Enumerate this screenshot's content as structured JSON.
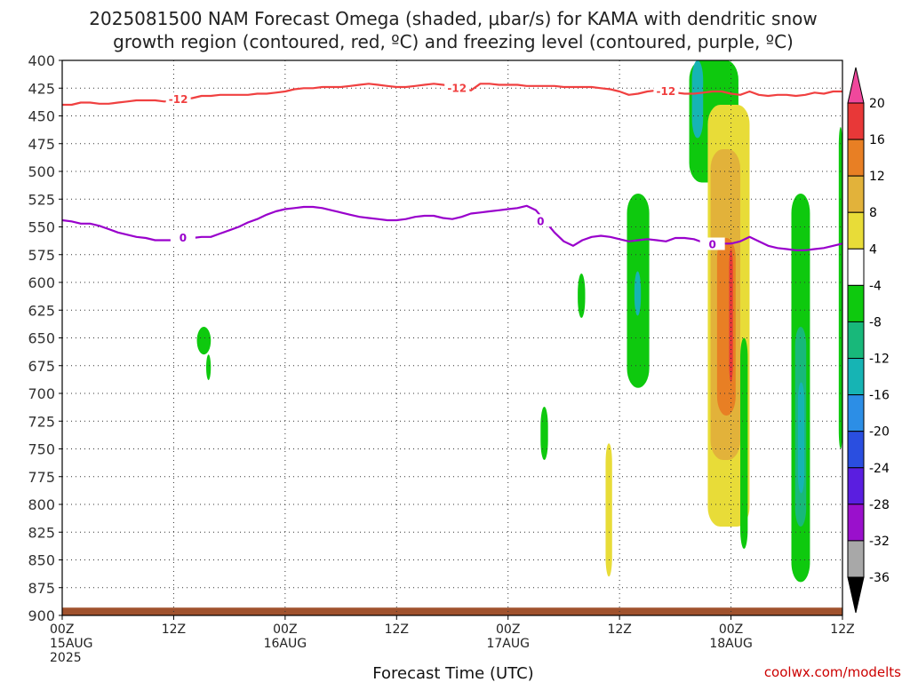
{
  "chart_data": {
    "type": "heatmap",
    "title_lines": [
      "2025081500 NAM Forecast Omega (shaded, μbar/s) for KAMA with dendritic snow",
      "growth region (contoured, red, ºC) and freezing level (contoured, purple, ºC)"
    ],
    "xlabel": "Forecast Time (UTC)",
    "credit": "coolwx.com/modelts",
    "x_unit": "forecast hour",
    "xlim": [
      0,
      84
    ],
    "ylim": [
      400,
      900
    ],
    "y_inverted": true,
    "y_ticks": [
      400,
      425,
      450,
      475,
      500,
      525,
      550,
      575,
      600,
      625,
      650,
      675,
      700,
      725,
      750,
      775,
      800,
      825,
      850,
      875,
      900
    ],
    "x_ticks": [
      {
        "hour": 0,
        "lines": [
          "00Z",
          "15AUG",
          "2025"
        ]
      },
      {
        "hour": 12,
        "lines": [
          "12Z"
        ]
      },
      {
        "hour": 24,
        "lines": [
          "00Z",
          "16AUG"
        ]
      },
      {
        "hour": 36,
        "lines": [
          "12Z"
        ]
      },
      {
        "hour": 48,
        "lines": [
          "00Z",
          "17AUG"
        ]
      },
      {
        "hour": 60,
        "lines": [
          "12Z"
        ]
      },
      {
        "hour": 72,
        "lines": [
          "00Z",
          "18AUG"
        ]
      },
      {
        "hour": 84,
        "lines": [
          "12Z"
        ]
      }
    ],
    "grid": true,
    "colorbar": {
      "labels": [
        "20",
        "16",
        "12",
        "8",
        "4",
        "-4",
        "-8",
        "-12",
        "-16",
        "-20",
        "-24",
        "-28",
        "-32",
        "-36"
      ],
      "colors_top_to_bottom": [
        "#f0489c",
        "#e83838",
        "#e87f24",
        "#e2b23a",
        "#e8dc38",
        "#ffffff",
        "#0ec90e",
        "#18b87a",
        "#16b4b4",
        "#2c8ee6",
        "#2a4ee0",
        "#5a1ee0",
        "#9a10cc",
        "#a8a8a8",
        "#000000"
      ]
    },
    "series": [
      {
        "name": "-12",
        "color": "#f04040",
        "x": [
          0,
          1,
          2,
          3,
          4,
          5,
          6,
          7,
          8,
          9,
          10,
          11,
          12,
          13,
          14,
          15,
          16,
          17,
          18,
          19,
          20,
          21,
          22,
          23,
          24,
          25,
          26,
          27,
          28,
          29,
          30,
          31,
          32,
          33,
          34,
          35,
          36,
          37,
          38,
          39,
          40,
          41,
          42,
          43,
          44,
          45,
          46,
          47,
          48,
          49,
          50,
          51,
          52,
          53,
          54,
          55,
          56,
          57,
          58,
          59,
          60,
          61,
          62,
          63,
          64,
          65,
          66,
          67,
          68,
          69,
          70,
          71,
          72,
          73,
          74,
          75,
          76,
          77,
          78,
          79,
          80,
          81,
          82,
          83,
          84
        ],
        "y": [
          440,
          440,
          438,
          438,
          439,
          439,
          438,
          437,
          436,
          436,
          436,
          437,
          436,
          435,
          434,
          432,
          432,
          431,
          431,
          431,
          431,
          430,
          430,
          429,
          428,
          426,
          425,
          425,
          424,
          424,
          424,
          423,
          422,
          421,
          422,
          423,
          424,
          424,
          423,
          422,
          421,
          422,
          423,
          425,
          427,
          421,
          421,
          422,
          422,
          422,
          423,
          423,
          423,
          423,
          424,
          424,
          424,
          424,
          425,
          426,
          428,
          431,
          430,
          428,
          427,
          428,
          429,
          430,
          430,
          429,
          428,
          428,
          430,
          431,
          428,
          431,
          432,
          431,
          431,
          432,
          431,
          429,
          430,
          428,
          428
        ]
      },
      {
        "name": "0",
        "color": "#9900cc",
        "x": [
          0,
          1,
          2,
          3,
          4,
          5,
          6,
          7,
          8,
          9,
          10,
          11,
          12,
          13,
          14,
          15,
          16,
          17,
          18,
          19,
          20,
          21,
          22,
          23,
          24,
          25,
          26,
          27,
          28,
          29,
          30,
          31,
          32,
          33,
          34,
          35,
          36,
          37,
          38,
          39,
          40,
          41,
          42,
          43,
          44,
          45,
          46,
          47,
          48,
          49,
          50,
          51,
          52,
          53,
          54,
          55,
          56,
          57,
          58,
          59,
          60,
          61,
          62,
          63,
          64,
          65,
          66,
          67,
          68,
          69,
          70,
          71,
          72,
          73,
          74,
          75,
          76,
          77,
          78,
          79,
          80,
          81,
          82,
          83,
          84
        ],
        "y": [
          544,
          545,
          547,
          547,
          549,
          552,
          555,
          557,
          559,
          560,
          562,
          562,
          562,
          560,
          560,
          559,
          559,
          556,
          553,
          550,
          546,
          543,
          539,
          536,
          534,
          533,
          532,
          532,
          533,
          535,
          537,
          539,
          541,
          542,
          543,
          544,
          544,
          543,
          541,
          540,
          540,
          542,
          543,
          541,
          538,
          537,
          536,
          535,
          534,
          533,
          531,
          535,
          545,
          555,
          563,
          567,
          562,
          559,
          558,
          559,
          561,
          563,
          562,
          561,
          562,
          563,
          560,
          560,
          561,
          564,
          566,
          565,
          565,
          563,
          559,
          563,
          567,
          569,
          570,
          571,
          571,
          570,
          569,
          567,
          565
        ]
      }
    ],
    "labels_on_lines": [
      {
        "text": "-12",
        "series": 0
      },
      {
        "text": "-12",
        "series": 0
      },
      {
        "text": "-12",
        "series": 0
      },
      {
        "text": "0",
        "series": 1
      },
      {
        "text": "0",
        "series": 1
      },
      {
        "text": "0",
        "series": 1
      }
    ],
    "shaded_regions": [
      {
        "value": -6,
        "hours": [
          14.5,
          16
        ],
        "p": [
          640,
          665
        ]
      },
      {
        "value": -6,
        "hours": [
          15.5,
          16
        ],
        "p": [
          665,
          688
        ]
      },
      {
        "value": -6,
        "hours": [
          51.5,
          52.3
        ],
        "p": [
          712,
          760
        ]
      },
      {
        "value": 6,
        "hours": [
          58.5,
          59.2
        ],
        "p": [
          745,
          865
        ]
      },
      {
        "value": -6,
        "hours": [
          55.5,
          56.3
        ],
        "p": [
          592,
          632
        ]
      },
      {
        "value": -6,
        "hours": [
          60.8,
          63.2
        ],
        "p": [
          520,
          695
        ]
      },
      {
        "value": -12,
        "hours": [
          61.6,
          62.3
        ],
        "p": [
          590,
          630
        ]
      },
      {
        "value": -6,
        "hours": [
          67.5,
          72.8
        ],
        "p": [
          400,
          510
        ]
      },
      {
        "value": -12,
        "hours": [
          67.8,
          69.0
        ],
        "p": [
          400,
          470
        ]
      },
      {
        "value": 6,
        "hours": [
          69.5,
          74
        ],
        "p": [
          440,
          820
        ]
      },
      {
        "value": 10,
        "hours": [
          69.8,
          73
        ],
        "p": [
          480,
          760
        ]
      },
      {
        "value": 14,
        "hours": [
          70.5,
          72.5
        ],
        "p": [
          560,
          720
        ]
      },
      {
        "value": 18,
        "hours": [
          71.8,
          72.2
        ],
        "p": [
          570,
          690
        ]
      },
      {
        "value": -6,
        "hours": [
          73,
          73.8
        ],
        "p": [
          650,
          840
        ]
      },
      {
        "value": -6,
        "hours": [
          78.5,
          80.5
        ],
        "p": [
          520,
          870
        ]
      },
      {
        "value": -10,
        "hours": [
          78.9,
          80.1
        ],
        "p": [
          640,
          820
        ]
      },
      {
        "value": -15,
        "hours": [
          79.2,
          79.9
        ],
        "p": [
          690,
          790
        ]
      },
      {
        "value": -6,
        "hours": [
          83.6,
          84
        ],
        "p": [
          460,
          750
        ]
      }
    ],
    "terrain_color": "#a0522d"
  }
}
